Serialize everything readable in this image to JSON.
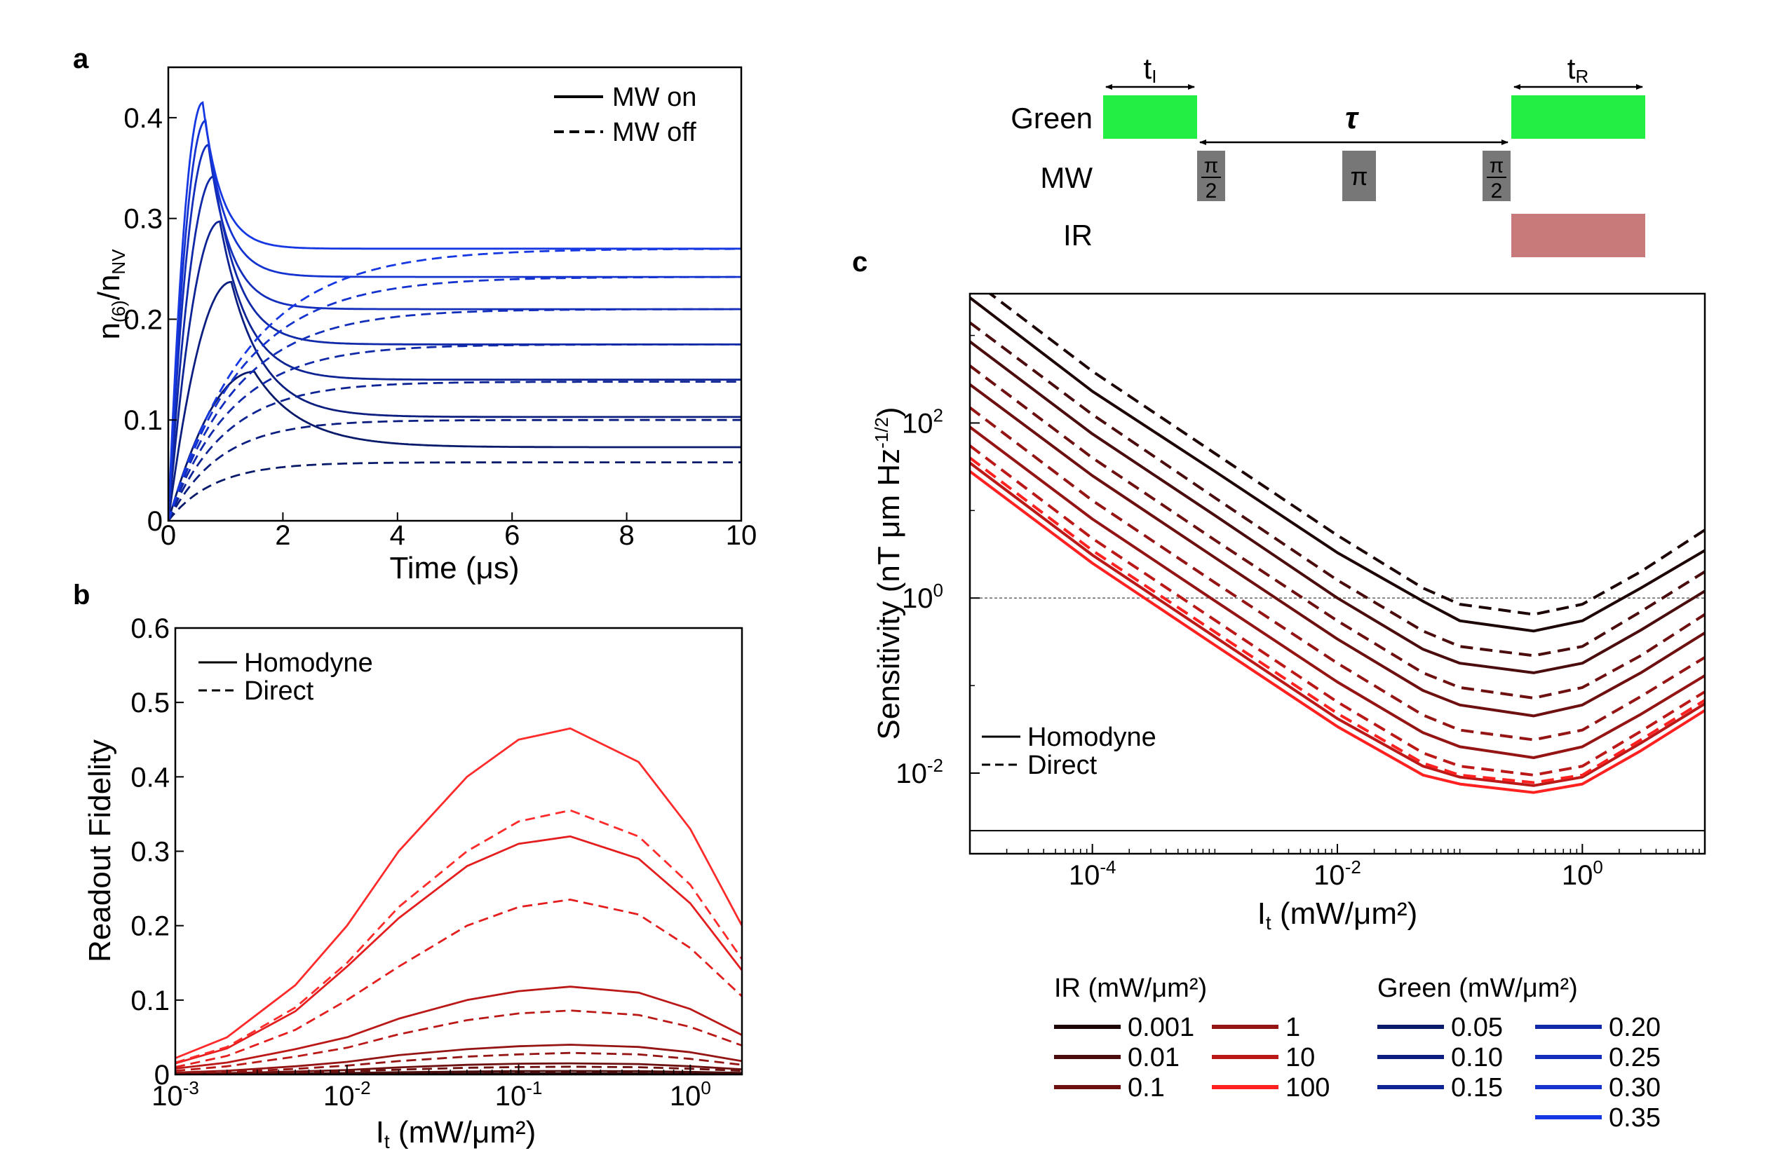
{
  "figure": {
    "panel_labels": {
      "a": "a",
      "b": "b",
      "c": "c"
    }
  },
  "pulse_sequence": {
    "rows": {
      "green": "Green",
      "mw": "MW",
      "ir": "IR"
    },
    "t_i": {
      "main": "t",
      "sub": "I"
    },
    "t_r": {
      "main": "t",
      "sub": "R"
    },
    "tau": "τ",
    "pi_half_num": "π",
    "pi_half_den": "2",
    "pi": "π",
    "colors": {
      "green": "#22ee44",
      "mw": "#777777",
      "ir": "#c87a7a"
    }
  },
  "chart_data": [
    {
      "id": "a",
      "type": "line",
      "title": "",
      "xlabel": "Time (μs)",
      "ylabel": {
        "main_1": "n",
        "sub_1": "(6)",
        "main_2": "/n",
        "sub_2": "NV"
      },
      "xlim": [
        0,
        10
      ],
      "ylim": [
        0,
        0.45
      ],
      "xticks": [
        0,
        2,
        4,
        6,
        8,
        10
      ],
      "yticks": [
        0,
        0.1,
        0.2,
        0.3,
        0.4
      ],
      "xtick_labels": [
        "0",
        "2",
        "4",
        "6",
        "8",
        "10"
      ],
      "ytick_labels": [
        "0",
        "0.1",
        "0.2",
        "0.3",
        "0.4"
      ],
      "legend": {
        "position": "top-right",
        "entries": [
          {
            "label": "MW on",
            "style": "solid"
          },
          {
            "label": "MW off",
            "style": "dashed"
          }
        ]
      },
      "series_on": [
        {
          "green": 0.05,
          "color": "#0a1a6b",
          "peak_t": 1.5,
          "peak": 0.148,
          "end": 0.073
        },
        {
          "green": 0.1,
          "color": "#0c1f80",
          "peak_t": 1.1,
          "peak": 0.237,
          "end": 0.103
        },
        {
          "green": 0.15,
          "color": "#0e2494",
          "peak_t": 0.9,
          "peak": 0.297,
          "end": 0.14
        },
        {
          "green": 0.2,
          "color": "#1029a8",
          "peak_t": 0.8,
          "peak": 0.342,
          "end": 0.175
        },
        {
          "green": 0.25,
          "color": "#122ebb",
          "peak_t": 0.7,
          "peak": 0.373,
          "end": 0.21
        },
        {
          "green": 0.3,
          "color": "#1433cf",
          "peak_t": 0.65,
          "peak": 0.397,
          "end": 0.242
        },
        {
          "green": 0.35,
          "color": "#1638e3",
          "peak_t": 0.6,
          "peak": 0.415,
          "end": 0.27
        }
      ],
      "series_off": [
        {
          "green": 0.05,
          "color": "#0a1a6b",
          "end": 0.058
        },
        {
          "green": 0.1,
          "color": "#0c1f80",
          "end": 0.1
        },
        {
          "green": 0.15,
          "color": "#0e2494",
          "end": 0.138
        },
        {
          "green": 0.2,
          "color": "#1029a8",
          "end": 0.175
        },
        {
          "green": 0.25,
          "color": "#122ebb",
          "end": 0.21
        },
        {
          "green": 0.3,
          "color": "#1433cf",
          "end": 0.242
        },
        {
          "green": 0.35,
          "color": "#1638e3",
          "end": 0.27
        }
      ]
    },
    {
      "id": "b",
      "type": "line",
      "xscale": "log",
      "xlabel": {
        "main": "I",
        "sub": "t",
        "rest": " (mW/μm²)"
      },
      "ylabel": "Readout Fidelity",
      "xlim": [
        0.001,
        2
      ],
      "ylim": [
        0,
        0.6
      ],
      "xticks": [
        0.001,
        0.01,
        0.1,
        1
      ],
      "xtick_labels": [
        {
          "base": "10",
          "exp": "-3"
        },
        {
          "base": "10",
          "exp": "-2"
        },
        {
          "base": "10",
          "exp": "-1"
        },
        {
          "base": "10",
          "exp": "0"
        }
      ],
      "yticks": [
        0,
        0.1,
        0.2,
        0.3,
        0.4,
        0.5,
        0.6
      ],
      "ytick_labels": [
        "0",
        "0.1",
        "0.2",
        "0.3",
        "0.4",
        "0.5",
        "0.6"
      ],
      "legend": {
        "position": "top-left",
        "entries": [
          {
            "label": "Homodyne",
            "style": "solid"
          },
          {
            "label": "Direct",
            "style": "dashed"
          }
        ]
      },
      "x": [
        0.001,
        0.002,
        0.005,
        0.01,
        0.02,
        0.05,
        0.1,
        0.2,
        0.5,
        1,
        2
      ],
      "series": [
        {
          "name": "IR 0.001 Homodyne",
          "ir": 0.001,
          "style": "solid",
          "color": "#2a0808",
          "values": [
            0.0001,
            0.0002,
            0.0004,
            0.0006,
            0.0009,
            0.0012,
            0.0014,
            0.0015,
            0.0014,
            0.0011,
            0.0007
          ]
        },
        {
          "name": "IR 0.001 Direct",
          "ir": 0.001,
          "style": "dashed",
          "color": "#2a0808",
          "values": [
            0.0001,
            0.0001,
            0.0003,
            0.0004,
            0.0006,
            0.0008,
            0.0009,
            0.001,
            0.0009,
            0.0007,
            0.0005
          ]
        },
        {
          "name": "IR 0.01 Homodyne",
          "ir": 0.01,
          "style": "solid",
          "color": "#4a0c0c",
          "values": [
            0.0003,
            0.0006,
            0.0013,
            0.002,
            0.003,
            0.004,
            0.0045,
            0.0047,
            0.0044,
            0.0035,
            0.0022
          ]
        },
        {
          "name": "IR 0.01 Direct",
          "ir": 0.01,
          "style": "dashed",
          "color": "#4a0c0c",
          "values": [
            0.0002,
            0.0004,
            0.0009,
            0.0014,
            0.002,
            0.0027,
            0.003,
            0.0032,
            0.003,
            0.0024,
            0.0015
          ]
        },
        {
          "name": "IR 0.1 Homodyne",
          "ir": 0.1,
          "style": "solid",
          "color": "#6e1010",
          "values": [
            0.001,
            0.0019,
            0.004,
            0.006,
            0.0095,
            0.013,
            0.0145,
            0.015,
            0.014,
            0.011,
            0.007
          ]
        },
        {
          "name": "IR 0.1 Direct",
          "ir": 0.1,
          "style": "dashed",
          "color": "#6e1010",
          "values": [
            0.0007,
            0.0013,
            0.0028,
            0.0042,
            0.0065,
            0.009,
            0.01,
            0.0105,
            0.0098,
            0.0077,
            0.005
          ]
        },
        {
          "name": "IR 1 Homodyne",
          "ir": 1,
          "style": "solid",
          "color": "#951414",
          "values": [
            0.0025,
            0.005,
            0.011,
            0.017,
            0.026,
            0.034,
            0.038,
            0.04,
            0.037,
            0.03,
            0.018
          ]
        },
        {
          "name": "IR 1 Direct",
          "ir": 1,
          "style": "dashed",
          "color": "#951414",
          "values": [
            0.0017,
            0.0033,
            0.0075,
            0.012,
            0.018,
            0.024,
            0.027,
            0.029,
            0.027,
            0.021,
            0.013
          ]
        },
        {
          "name": "IR 10 Homodyne",
          "ir": 10,
          "style": "solid",
          "color": "#bb1818",
          "values": [
            0.008,
            0.016,
            0.034,
            0.05,
            0.075,
            0.1,
            0.112,
            0.118,
            0.11,
            0.088,
            0.053
          ]
        },
        {
          "name": "IR 10 Direct",
          "ir": 10,
          "style": "dashed",
          "color": "#bb1818",
          "values": [
            0.005,
            0.011,
            0.024,
            0.036,
            0.054,
            0.073,
            0.082,
            0.086,
            0.08,
            0.064,
            0.039
          ]
        },
        {
          "name": "IR 100 Homodyne 1",
          "ir": 100,
          "style": "solid",
          "color": "#e41e1e",
          "values": [
            0.015,
            0.035,
            0.085,
            0.145,
            0.21,
            0.28,
            0.31,
            0.32,
            0.29,
            0.23,
            0.14
          ]
        },
        {
          "name": "IR 100 Direct 1",
          "ir": 100,
          "style": "dashed",
          "color": "#e41e1e",
          "values": [
            0.01,
            0.025,
            0.06,
            0.1,
            0.145,
            0.2,
            0.225,
            0.235,
            0.215,
            0.17,
            0.105
          ]
        },
        {
          "name": "IR 100 Homodyne 2",
          "ir": 100,
          "style": "solid",
          "color": "#ff2a2a",
          "values": [
            0.022,
            0.05,
            0.12,
            0.2,
            0.3,
            0.4,
            0.45,
            0.465,
            0.42,
            0.33,
            0.2
          ]
        },
        {
          "name": "IR 100 Direct 2",
          "ir": 100,
          "style": "dashed",
          "color": "#ff2a2a",
          "values": [
            0.016,
            0.037,
            0.09,
            0.15,
            0.225,
            0.3,
            0.34,
            0.355,
            0.32,
            0.255,
            0.155
          ]
        }
      ]
    },
    {
      "id": "c",
      "type": "line",
      "xscale": "log",
      "yscale": "log",
      "xlabel": {
        "main": "I",
        "sub": "t",
        "rest": " (mW/μm²)"
      },
      "ylabel": {
        "main": "Sensitivity (nT μm Hz",
        "sup": "-1/2",
        "close": ")"
      },
      "xlim": [
        1e-05,
        10
      ],
      "ylim": [
        0.0012,
        3000
      ],
      "xticks": [
        0.0001,
        0.01,
        1
      ],
      "xtick_labels": [
        {
          "base": "10",
          "exp": "-4"
        },
        {
          "base": "10",
          "exp": "-2"
        },
        {
          "base": "10",
          "exp": "0"
        }
      ],
      "yticks": [
        0.01,
        1,
        100
      ],
      "ytick_labels": [
        {
          "base": "10",
          "exp": "-2"
        },
        {
          "base": "10",
          "exp": "0"
        },
        {
          "base": "10",
          "exp": "2"
        }
      ],
      "reference_lines": [
        {
          "y": 1,
          "style": "dotted",
          "color": "#666666"
        },
        {
          "y": 0.0022,
          "style": "solid",
          "color": "#000000"
        }
      ],
      "legend": {
        "position": "bottom-left",
        "entries": [
          {
            "label": "Homodyne",
            "style": "solid"
          },
          {
            "label": "Direct",
            "style": "dashed"
          }
        ]
      },
      "x": [
        1e-05,
        0.0001,
        0.001,
        0.01,
        0.05,
        0.1,
        0.4,
        1,
        3,
        10
      ],
      "series": [
        {
          "name": "IR 0.001 Homodyne",
          "ir": 0.001,
          "style": "solid",
          "color": "#1e0505",
          "values": [
            2700,
            230,
            28,
            3.3,
            0.92,
            0.55,
            0.42,
            0.55,
            1.3,
            3.5
          ]
        },
        {
          "name": "IR 0.001 Direct",
          "ir": 0.001,
          "style": "dashed",
          "color": "#1e0505",
          "values": [
            4500,
            390,
            45,
            5.2,
            1.3,
            0.85,
            0.65,
            0.85,
            2.0,
            6.0
          ]
        },
        {
          "name": "IR 0.01 Homodyne",
          "ir": 0.01,
          "style": "solid",
          "color": "#4a0c0c",
          "values": [
            850,
            75,
            8.8,
            1.0,
            0.26,
            0.18,
            0.14,
            0.18,
            0.43,
            1.2
          ]
        },
        {
          "name": "IR 0.01 Direct",
          "ir": 0.01,
          "style": "dashed",
          "color": "#4a0c0c",
          "values": [
            1400,
            125,
            14,
            1.6,
            0.42,
            0.28,
            0.22,
            0.28,
            0.7,
            2.0
          ]
        },
        {
          "name": "IR 0.1 Homodyne",
          "ir": 0.1,
          "style": "solid",
          "color": "#6e1010",
          "values": [
            275,
            25,
            2.9,
            0.34,
            0.088,
            0.06,
            0.045,
            0.06,
            0.14,
            0.4
          ]
        },
        {
          "name": "IR 0.1 Direct",
          "ir": 0.1,
          "style": "dashed",
          "color": "#6e1010",
          "values": [
            450,
            40,
            4.6,
            0.55,
            0.14,
            0.095,
            0.072,
            0.095,
            0.22,
            0.65
          ]
        },
        {
          "name": "IR 1 Homodyne",
          "ir": 1,
          "style": "solid",
          "color": "#951414",
          "values": [
            90,
            8.0,
            0.93,
            0.11,
            0.029,
            0.02,
            0.015,
            0.02,
            0.047,
            0.13
          ]
        },
        {
          "name": "IR 1 Direct",
          "ir": 1,
          "style": "dashed",
          "color": "#951414",
          "values": [
            150,
            13,
            1.5,
            0.18,
            0.046,
            0.031,
            0.024,
            0.031,
            0.075,
            0.21
          ]
        },
        {
          "name": "IR 10 Homodyne",
          "ir": 10,
          "style": "solid",
          "color": "#bb1818",
          "values": [
            35,
            3.1,
            0.36,
            0.042,
            0.012,
            0.009,
            0.0072,
            0.009,
            0.022,
            0.062
          ]
        },
        {
          "name": "IR 10 Direct",
          "ir": 10,
          "style": "dashed",
          "color": "#bb1818",
          "values": [
            55,
            4.8,
            0.56,
            0.065,
            0.017,
            0.012,
            0.0095,
            0.012,
            0.03,
            0.085
          ]
        },
        {
          "name": "IR 100 Homodyne",
          "ir": 100,
          "style": "solid",
          "color": "#ff2020",
          "values": [
            28,
            2.5,
            0.29,
            0.034,
            0.0095,
            0.0075,
            0.006,
            0.0075,
            0.018,
            0.052
          ]
        },
        {
          "name": "IR 100 Direct",
          "ir": 100,
          "style": "dashed",
          "color": "#ff2020",
          "values": [
            40,
            3.5,
            0.41,
            0.048,
            0.013,
            0.0095,
            0.0078,
            0.0095,
            0.024,
            0.068
          ]
        }
      ]
    }
  ],
  "color_legend": {
    "ir_title": "IR (mW/μm²)",
    "green_title": "Green (mW/μm²)",
    "ir_entries": [
      {
        "label": "0.001",
        "color": "#1e0505"
      },
      {
        "label": "0.01",
        "color": "#4a0c0c"
      },
      {
        "label": "0.1",
        "color": "#6e1010"
      },
      {
        "label": "1",
        "color": "#951414"
      },
      {
        "label": "10",
        "color": "#bb1818"
      },
      {
        "label": "100",
        "color": "#ff2020"
      }
    ],
    "green_entries": [
      {
        "label": "0.05",
        "color": "#0a1a6b"
      },
      {
        "label": "0.10",
        "color": "#0c1f80"
      },
      {
        "label": "0.15",
        "color": "#0e2494"
      },
      {
        "label": "0.20",
        "color": "#1029a8"
      },
      {
        "label": "0.25",
        "color": "#122ebb"
      },
      {
        "label": "0.30",
        "color": "#1433cf"
      },
      {
        "label": "0.35",
        "color": "#1638e3"
      }
    ]
  }
}
